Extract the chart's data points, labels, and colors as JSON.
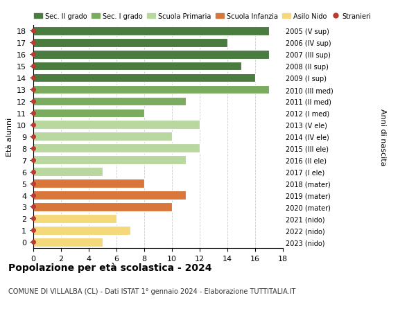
{
  "ages": [
    18,
    17,
    16,
    15,
    14,
    13,
    12,
    11,
    10,
    9,
    8,
    7,
    6,
    5,
    4,
    3,
    2,
    1,
    0
  ],
  "values": [
    17,
    14,
    17,
    15,
    16,
    17,
    11,
    8,
    12,
    10,
    12,
    11,
    5,
    8,
    11,
    10,
    6,
    7,
    5
  ],
  "right_labels": [
    "2005 (V sup)",
    "2006 (IV sup)",
    "2007 (III sup)",
    "2008 (II sup)",
    "2009 (I sup)",
    "2010 (III med)",
    "2011 (II med)",
    "2012 (I med)",
    "2013 (V ele)",
    "2014 (IV ele)",
    "2015 (III ele)",
    "2016 (II ele)",
    "2017 (I ele)",
    "2018 (mater)",
    "2019 (mater)",
    "2020 (mater)",
    "2021 (nido)",
    "2022 (nido)",
    "2023 (nido)"
  ],
  "bar_colors": [
    "#4a7c3f",
    "#4a7c3f",
    "#4a7c3f",
    "#4a7c3f",
    "#4a7c3f",
    "#7aab5e",
    "#7aab5e",
    "#7aab5e",
    "#b8d8a0",
    "#b8d8a0",
    "#b8d8a0",
    "#b8d8a0",
    "#b8d8a0",
    "#d9773a",
    "#d9773a",
    "#d9773a",
    "#f5d87a",
    "#f5d87a",
    "#f5d87a"
  ],
  "stranieri_color": "#c0392b",
  "legend_items": [
    {
      "label": "Sec. II grado",
      "color": "#4a7c3f"
    },
    {
      "label": "Sec. I grado",
      "color": "#7aab5e"
    },
    {
      "label": "Scuola Primaria",
      "color": "#b8d8a0"
    },
    {
      "label": "Scuola Infanzia",
      "color": "#d9773a"
    },
    {
      "label": "Asilo Nido",
      "color": "#f5d87a"
    },
    {
      "label": "Stranieri",
      "color": "#c0392b"
    }
  ],
  "title": "Popolazione per età scolastica - 2024",
  "subtitle": "COMUNE DI VILLALBA (CL) - Dati ISTAT 1° gennaio 2024 - Elaborazione TUTTITALIA.IT",
  "ylabel": "Età alunni",
  "right_ylabel": "Anni di nascita",
  "xlim": [
    0,
    18
  ],
  "background_color": "#ffffff",
  "grid_color": "#cccccc"
}
